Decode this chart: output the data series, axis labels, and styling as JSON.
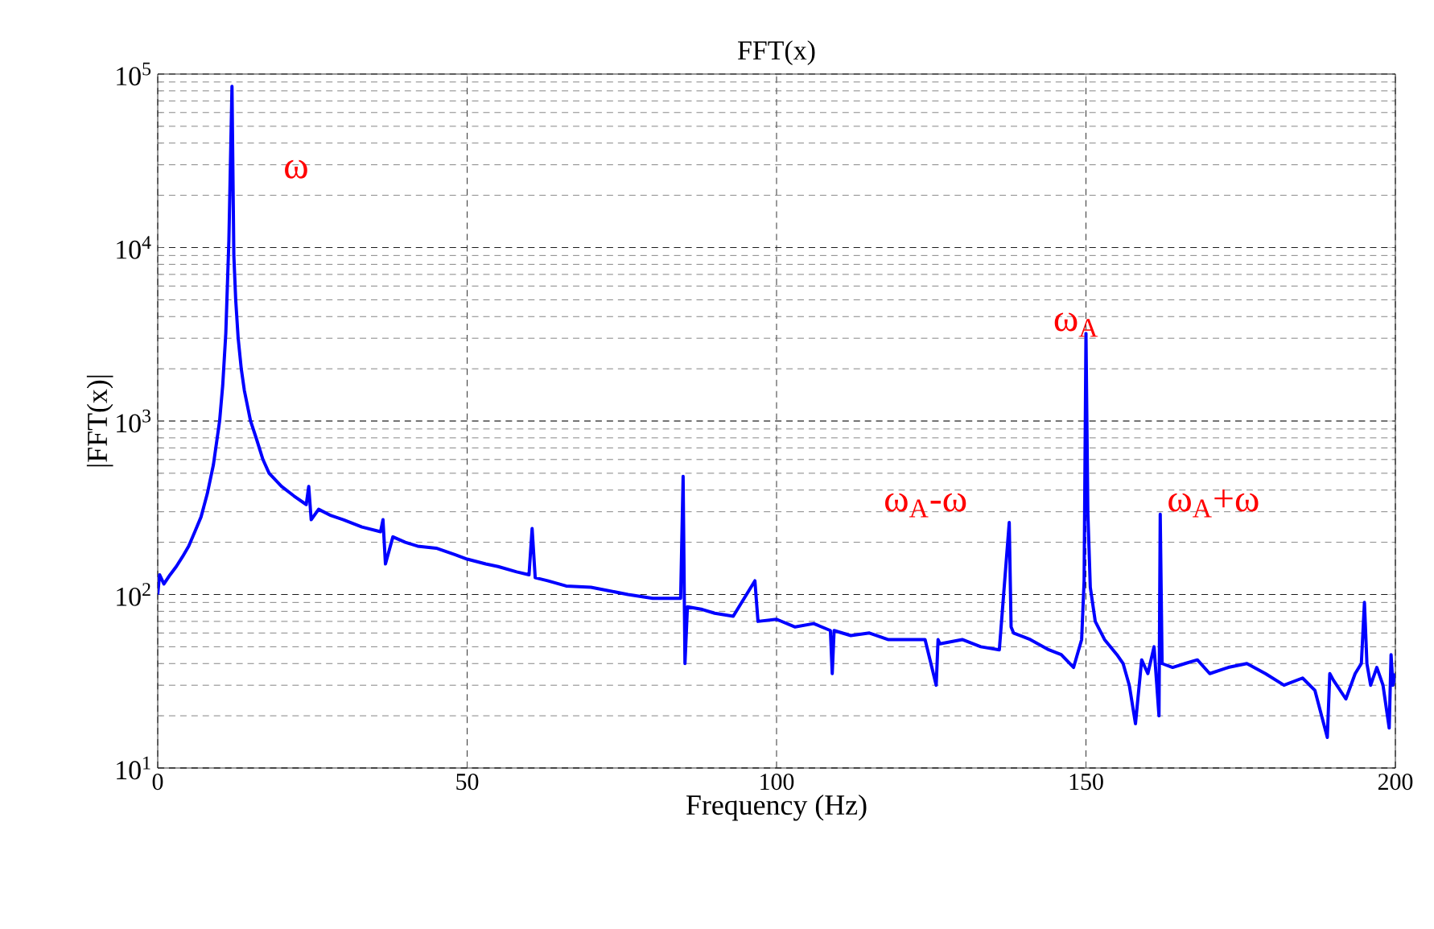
{
  "chart_data": {
    "type": "line",
    "title": "FFT(x)",
    "xlabel": "Frequency (Hz)",
    "ylabel": "|FFT(x)|",
    "log": "y",
    "grid": true,
    "line_style": "solid",
    "marker": "none",
    "xlim": [
      0,
      200
    ],
    "xticks": [
      0,
      50,
      100,
      150,
      200
    ],
    "ylim": [
      10,
      100000
    ],
    "yticks": [
      {
        "value": 10,
        "label": "10$^{1}$"
      },
      {
        "value": 100,
        "label": "10$^{2}$"
      },
      {
        "value": 1000,
        "label": "10$^{3}$"
      },
      {
        "value": 10000,
        "label": "10$^{4}$"
      },
      {
        "value": 100000,
        "label": "10$^{5}$"
      }
    ],
    "annotations": [
      "ω",
      "ω$_{A}$",
      "ω$_{A}$-ω",
      "ω$_{A}$+ω"
    ],
    "series": [
      {
        "color": "#0000ff",
        "x": [
          0,
          0.3,
          1,
          2,
          3,
          4,
          5,
          6,
          7,
          8,
          9,
          10,
          10.5,
          11,
          11.5,
          12,
          12.3,
          12.6,
          13,
          13.5,
          14,
          15,
          16,
          17,
          18,
          20,
          22,
          24,
          24.4,
          24.8,
          26,
          28,
          30,
          33,
          36,
          36.4,
          36.8,
          38,
          40,
          42,
          45,
          48,
          50,
          53,
          55,
          58,
          60,
          60.5,
          61,
          63,
          66,
          70,
          73,
          76,
          80,
          84.5,
          84.9,
          85.2,
          85.6,
          88,
          90,
          93,
          96.5,
          97,
          100,
          103,
          106,
          108.7,
          109,
          109.3,
          112,
          115,
          118,
          121,
          124,
          125.8,
          126.1,
          126.4,
          130,
          133,
          136,
          137.6,
          137.9,
          138.3,
          141,
          144,
          146,
          148,
          149.3,
          149.7,
          150,
          150.3,
          150.7,
          151.5,
          153,
          155,
          156,
          157,
          158,
          159,
          160,
          161,
          161.8,
          162,
          162.3,
          164,
          166,
          168,
          170,
          173,
          176,
          179,
          182,
          185,
          187,
          189,
          189.4,
          190,
          192,
          193.5,
          194.5,
          195,
          195.4,
          196,
          197,
          198,
          199,
          199.3,
          199.6,
          200
        ],
        "values": [
          100,
          130,
          115,
          130,
          145,
          165,
          190,
          230,
          280,
          380,
          560,
          1000,
          1600,
          3200,
          11000,
          85000,
          9000,
          5000,
          3000,
          2000,
          1500,
          1000,
          780,
          600,
          500,
          420,
          370,
          330,
          420,
          270,
          310,
          285,
          270,
          245,
          230,
          270,
          150,
          215,
          200,
          190,
          185,
          170,
          160,
          150,
          145,
          135,
          130,
          240,
          125,
          120,
          112,
          110,
          105,
          100,
          95,
          95,
          480,
          40,
          85,
          82,
          78,
          75,
          120,
          70,
          72,
          65,
          68,
          62,
          35,
          62,
          58,
          60,
          55,
          55,
          55,
          30,
          55,
          52,
          55,
          50,
          48,
          260,
          65,
          60,
          55,
          48,
          45,
          38,
          55,
          120,
          3200,
          300,
          110,
          70,
          55,
          45,
          40,
          30,
          18,
          42,
          35,
          50,
          20,
          290,
          40,
          38,
          40,
          42,
          35,
          38,
          40,
          35,
          30,
          33,
          28,
          15,
          35,
          32,
          25,
          35,
          40,
          90,
          40,
          30,
          38,
          30,
          17,
          45,
          30,
          35
        ]
      }
    ]
  }
}
